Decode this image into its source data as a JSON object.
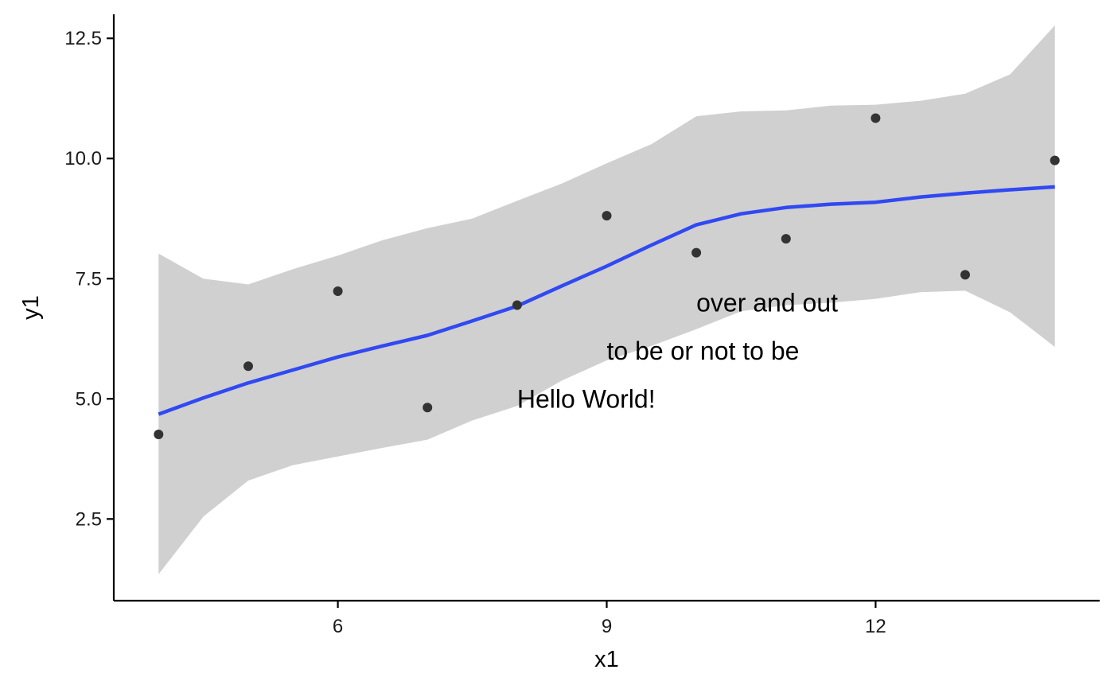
{
  "chart_data": {
    "type": "scatter",
    "xlabel": "x1",
    "ylabel": "y1",
    "xlim": [
      3.5,
      14.5
    ],
    "ylim": [
      0.8,
      13.0
    ],
    "x_ticks": [
      6,
      9,
      12
    ],
    "x_tick_labels": [
      "6",
      "9",
      "12"
    ],
    "y_ticks": [
      2.5,
      5.0,
      7.5,
      10.0,
      12.5
    ],
    "y_tick_labels": [
      "2.5",
      "5.0",
      "7.5",
      "10.0",
      "12.5"
    ],
    "grid": false,
    "legend": "none",
    "points": {
      "x": [
        4,
        5,
        6,
        7,
        8,
        9,
        10,
        11,
        12,
        13,
        14
      ],
      "y": [
        4.26,
        5.68,
        7.24,
        4.82,
        6.95,
        8.81,
        8.04,
        8.33,
        10.84,
        7.58,
        9.96
      ]
    },
    "smooth": {
      "method": "loess",
      "x": [
        4,
        4.5,
        5,
        5.5,
        6,
        6.5,
        7,
        7.5,
        8,
        8.5,
        9,
        9.5,
        10,
        10.5,
        11,
        11.5,
        12,
        12.5,
        13,
        13.5,
        14
      ],
      "y": [
        4.68,
        5.02,
        5.33,
        5.6,
        5.87,
        6.1,
        6.32,
        6.62,
        6.93,
        7.35,
        7.76,
        8.2,
        8.62,
        8.85,
        8.98,
        9.05,
        9.09,
        9.2,
        9.28,
        9.35,
        9.41
      ],
      "lower": [
        1.35,
        2.55,
        3.3,
        3.62,
        3.8,
        3.98,
        4.15,
        4.55,
        4.85,
        5.38,
        5.8,
        6.1,
        6.45,
        6.82,
        6.95,
        7.0,
        7.08,
        7.22,
        7.25,
        6.8,
        6.08
      ],
      "upper": [
        8.02,
        7.5,
        7.38,
        7.7,
        7.98,
        8.3,
        8.55,
        8.75,
        9.12,
        9.48,
        9.9,
        10.3,
        10.88,
        10.98,
        11.0,
        11.1,
        11.12,
        11.2,
        11.35,
        11.75,
        12.77
      ]
    },
    "annotations": [
      {
        "text": "Hello World!",
        "x": 8,
        "y": 5
      },
      {
        "text": "to be or not to be",
        "x": 9,
        "y": 6
      },
      {
        "text": "over and out",
        "x": 10,
        "y": 7
      }
    ],
    "colors": {
      "points": "#333333",
      "line": "#3149f2",
      "ribbon": "#d0d0d0"
    }
  }
}
